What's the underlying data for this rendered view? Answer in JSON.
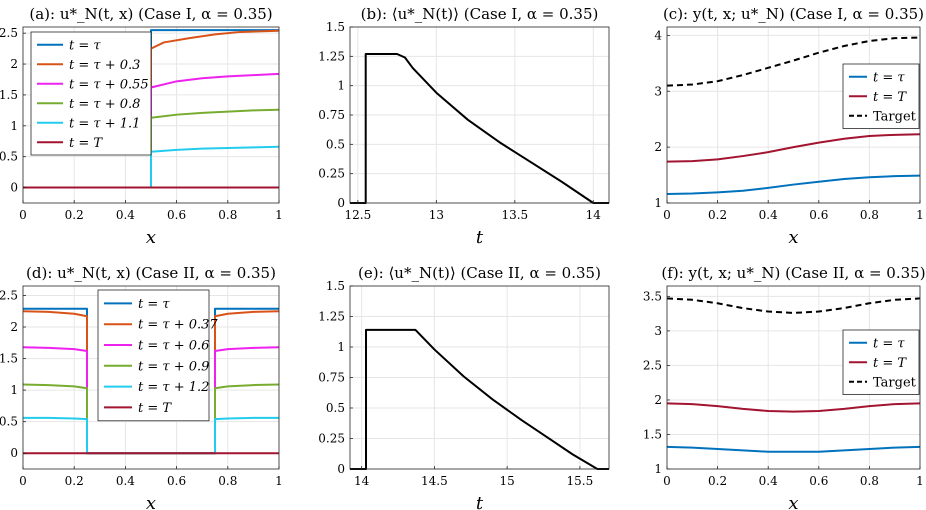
{
  "chart_data": [
    {
      "type": "line",
      "title": "(a):  u*_N(t, x)  (Case I, α = 0.35)",
      "xlabel": "x",
      "ylabel": "",
      "xlim": [
        0,
        1
      ],
      "ylim": [
        -0.25,
        2.6
      ],
      "xticks": [
        0,
        0.2,
        0.4,
        0.6,
        0.8,
        1
      ],
      "xtick_labels": [
        "0",
        "0.2",
        "0.4",
        "0.6",
        "0.8",
        "1"
      ],
      "yticks": [
        0,
        0.5,
        1,
        1.5,
        2,
        2.5
      ],
      "ytick_labels": [
        "0",
        "0.5",
        "1",
        "1.5",
        "2",
        "2.5"
      ],
      "legend_position": "top-left",
      "series": [
        {
          "name": "t = τ",
          "color": "#0072BD",
          "x": [
            0,
            0.5,
            0.5,
            1
          ],
          "y": [
            0,
            0,
            2.55,
            2.55
          ]
        },
        {
          "name": "t = τ + 0.3",
          "color": "#D95319",
          "x": [
            0,
            0.5,
            0.5,
            0.55,
            0.65,
            0.75,
            0.85,
            1
          ],
          "y": [
            0,
            0,
            2.25,
            2.35,
            2.42,
            2.48,
            2.52,
            2.54
          ]
        },
        {
          "name": "t = τ + 0.55",
          "color": "#EE22EE",
          "x": [
            0,
            0.5,
            0.5,
            0.6,
            0.7,
            0.8,
            0.9,
            1
          ],
          "y": [
            0,
            0,
            1.62,
            1.72,
            1.77,
            1.8,
            1.82,
            1.84
          ]
        },
        {
          "name": "t = τ + 0.8",
          "color": "#77AC30",
          "x": [
            0,
            0.5,
            0.5,
            0.6,
            0.7,
            0.8,
            0.9,
            1
          ],
          "y": [
            0,
            0,
            1.13,
            1.18,
            1.21,
            1.23,
            1.25,
            1.26
          ]
        },
        {
          "name": "t = τ + 1.1",
          "color": "#22CCEE",
          "x": [
            0,
            0.5,
            0.5,
            0.6,
            0.7,
            0.8,
            0.9,
            1
          ],
          "y": [
            0,
            0,
            0.58,
            0.61,
            0.63,
            0.64,
            0.65,
            0.66
          ]
        },
        {
          "name": "t = T",
          "color": "#A2142F",
          "x": [
            0,
            1
          ],
          "y": [
            0,
            0
          ]
        }
      ]
    },
    {
      "type": "line",
      "title": "(b):  ⟨u*_N(t)⟩  (Case I, α = 0.35)",
      "xlabel": "t",
      "ylabel": "",
      "xlim": [
        12.45,
        14.1
      ],
      "ylim": [
        0,
        1.5
      ],
      "xticks": [
        12.5,
        13,
        13.5,
        14
      ],
      "xtick_labels": [
        "12.5",
        "13",
        "13.5",
        "14"
      ],
      "yticks": [
        0,
        0.25,
        0.5,
        0.75,
        1,
        1.25,
        1.5
      ],
      "ytick_labels": [
        "0",
        "0.25",
        "0.5",
        "0.75",
        "1",
        "1.25",
        "1.5"
      ],
      "series": [
        {
          "name": "",
          "color": "#000000",
          "x": [
            12.45,
            12.55,
            12.55,
            12.75,
            12.8,
            12.85,
            13.0,
            13.2,
            13.4,
            13.6,
            13.8,
            14.0,
            14.1
          ],
          "y": [
            0,
            0,
            1.27,
            1.27,
            1.24,
            1.15,
            0.94,
            0.71,
            0.52,
            0.35,
            0.18,
            0,
            0
          ]
        }
      ]
    },
    {
      "type": "line",
      "title": "(c):  y(t, x; u*_N)  (Case I, α = 0.35)",
      "xlabel": "x",
      "ylabel": "",
      "xlim": [
        0,
        1
      ],
      "ylim": [
        1,
        4.15
      ],
      "xticks": [
        0,
        0.2,
        0.4,
        0.6,
        0.8,
        1
      ],
      "xtick_labels": [
        "0",
        "0.2",
        "0.4",
        "0.6",
        "0.8",
        "1"
      ],
      "yticks": [
        1,
        2,
        3,
        4
      ],
      "ytick_labels": [
        "1",
        "2",
        "3",
        "4"
      ],
      "legend_position": "right",
      "series": [
        {
          "name": "t = τ",
          "color": "#0072BD",
          "x": [
            0,
            0.1,
            0.2,
            0.3,
            0.4,
            0.5,
            0.6,
            0.7,
            0.8,
            0.9,
            1
          ],
          "y": [
            1.16,
            1.17,
            1.19,
            1.22,
            1.27,
            1.33,
            1.38,
            1.43,
            1.46,
            1.48,
            1.49
          ]
        },
        {
          "name": "t = T",
          "color": "#A2142F",
          "x": [
            0,
            0.1,
            0.2,
            0.3,
            0.4,
            0.5,
            0.6,
            0.7,
            0.8,
            0.9,
            1
          ],
          "y": [
            1.74,
            1.75,
            1.78,
            1.84,
            1.91,
            2.0,
            2.08,
            2.15,
            2.2,
            2.22,
            2.23
          ]
        },
        {
          "name": "Target",
          "color": "#000000",
          "dashed": true,
          "x": [
            0,
            0.1,
            0.2,
            0.3,
            0.4,
            0.5,
            0.6,
            0.7,
            0.8,
            0.9,
            1
          ],
          "y": [
            3.1,
            3.12,
            3.18,
            3.29,
            3.42,
            3.55,
            3.69,
            3.81,
            3.9,
            3.95,
            3.96
          ]
        }
      ]
    },
    {
      "type": "line",
      "title": "(d):  u*_N(t, x)  (Case II, α = 0.35)",
      "xlabel": "x",
      "ylabel": "",
      "xlim": [
        0,
        1
      ],
      "ylim": [
        -0.25,
        2.65
      ],
      "xticks": [
        0,
        0.2,
        0.4,
        0.6,
        0.8,
        1
      ],
      "xtick_labels": [
        "0",
        "0.2",
        "0.4",
        "0.6",
        "0.8",
        "1"
      ],
      "yticks": [
        0,
        0.5,
        1,
        1.5,
        2,
        2.5
      ],
      "ytick_labels": [
        "0",
        "0.5",
        "1",
        "1.5",
        "2",
        "2.5"
      ],
      "legend_position": "top-center",
      "series": [
        {
          "name": "t = τ",
          "color": "#0072BD",
          "x": [
            0,
            0.25,
            0.25,
            0.75,
            0.75,
            1
          ],
          "y": [
            2.29,
            2.29,
            0,
            0,
            2.29,
            2.29
          ]
        },
        {
          "name": "t = τ + 0.37",
          "color": "#D95319",
          "x": [
            0,
            0.1,
            0.2,
            0.25,
            0.25,
            0.75,
            0.75,
            0.8,
            0.9,
            1
          ],
          "y": [
            2.25,
            2.24,
            2.21,
            2.17,
            0,
            0,
            2.17,
            2.21,
            2.24,
            2.25
          ]
        },
        {
          "name": "t = τ + 0.6",
          "color": "#EE22EE",
          "x": [
            0,
            0.1,
            0.2,
            0.25,
            0.25,
            0.75,
            0.75,
            0.8,
            0.9,
            1
          ],
          "y": [
            1.68,
            1.67,
            1.65,
            1.62,
            0,
            0,
            1.62,
            1.65,
            1.67,
            1.68
          ]
        },
        {
          "name": "t = τ + 0.9",
          "color": "#77AC30",
          "x": [
            0,
            0.1,
            0.2,
            0.25,
            0.25,
            0.75,
            0.75,
            0.8,
            0.9,
            1
          ],
          "y": [
            1.09,
            1.08,
            1.06,
            1.03,
            0,
            0,
            1.03,
            1.06,
            1.08,
            1.09
          ]
        },
        {
          "name": "t = τ + 1.2",
          "color": "#22CCEE",
          "x": [
            0,
            0.1,
            0.2,
            0.25,
            0.25,
            0.75,
            0.75,
            0.8,
            0.9,
            1
          ],
          "y": [
            0.56,
            0.56,
            0.55,
            0.54,
            0,
            0,
            0.54,
            0.55,
            0.56,
            0.56
          ]
        },
        {
          "name": "t = T",
          "color": "#A2142F",
          "x": [
            0,
            1
          ],
          "y": [
            0,
            0
          ]
        }
      ]
    },
    {
      "type": "line",
      "title": "(e):  ⟨u*_N(t)⟩  (Case II, α = 0.35)",
      "xlabel": "t",
      "ylabel": "",
      "xlim": [
        13.92,
        15.7
      ],
      "ylim": [
        0,
        1.5
      ],
      "xticks": [
        14,
        14.5,
        15,
        15.5
      ],
      "xtick_labels": [
        "14",
        "14.5",
        "15",
        "15.5"
      ],
      "yticks": [
        0,
        0.25,
        0.5,
        0.75,
        1,
        1.25,
        1.5
      ],
      "ytick_labels": [
        "0",
        "0.25",
        "0.5",
        "0.75",
        "1",
        "1.25",
        "1.5"
      ],
      "series": [
        {
          "name": "",
          "color": "#000000",
          "x": [
            13.92,
            14.03,
            14.03,
            14.37,
            14.5,
            14.7,
            14.9,
            15.1,
            15.3,
            15.45,
            15.62,
            15.7
          ],
          "y": [
            0,
            0,
            1.14,
            1.14,
            0.98,
            0.76,
            0.57,
            0.4,
            0.24,
            0.12,
            0,
            0
          ]
        }
      ]
    },
    {
      "type": "line",
      "title": "(f):  y(t, x; u*_N)  (Case II, α = 0.35)",
      "xlabel": "x",
      "ylabel": "",
      "xlim": [
        0,
        1
      ],
      "ylim": [
        1,
        3.65
      ],
      "xticks": [
        0,
        0.2,
        0.4,
        0.6,
        0.8,
        1
      ],
      "xtick_labels": [
        "0",
        "0.2",
        "0.4",
        "0.6",
        "0.8",
        "1"
      ],
      "yticks": [
        1,
        1.5,
        2,
        2.5,
        3,
        3.5
      ],
      "ytick_labels": [
        "1",
        "1.5",
        "2",
        "2.5",
        "3",
        "3.5"
      ],
      "legend_position": "right",
      "series": [
        {
          "name": "t = τ",
          "color": "#0072BD",
          "x": [
            0,
            0.1,
            0.2,
            0.3,
            0.4,
            0.5,
            0.6,
            0.7,
            0.8,
            0.9,
            1
          ],
          "y": [
            1.32,
            1.31,
            1.29,
            1.27,
            1.25,
            1.25,
            1.25,
            1.27,
            1.29,
            1.31,
            1.32
          ]
        },
        {
          "name": "t = T",
          "color": "#A2142F",
          "x": [
            0,
            0.1,
            0.2,
            0.3,
            0.4,
            0.5,
            0.6,
            0.7,
            0.8,
            0.9,
            1
          ],
          "y": [
            1.95,
            1.94,
            1.91,
            1.87,
            1.84,
            1.83,
            1.84,
            1.87,
            1.91,
            1.94,
            1.95
          ]
        },
        {
          "name": "Target",
          "color": "#000000",
          "dashed": true,
          "x": [
            0,
            0.1,
            0.2,
            0.3,
            0.4,
            0.5,
            0.6,
            0.7,
            0.8,
            0.9,
            1
          ],
          "y": [
            3.47,
            3.45,
            3.4,
            3.33,
            3.28,
            3.26,
            3.28,
            3.33,
            3.4,
            3.45,
            3.47
          ]
        }
      ]
    }
  ]
}
